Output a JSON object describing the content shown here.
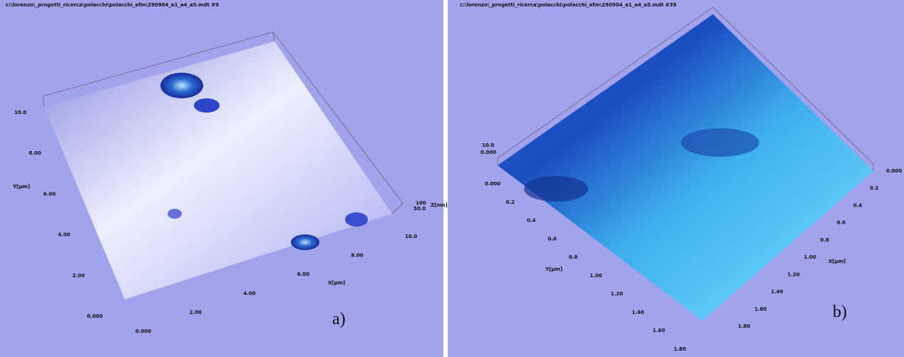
{
  "panels": [
    {
      "title": "c:\\lorenzo\\_progetti_ricerca\\polacchi\\polacchi_afm\\290904_a1_a4_a5.mdt #9",
      "y_axis": {
        "label": "Y[µm]",
        "ticks": [
          "10.0",
          "8.00",
          "6.00",
          "4.00",
          "2.00",
          "0.000"
        ]
      },
      "x_axis": {
        "label": "X[µm]",
        "ticks": [
          "0.000",
          "2.00",
          "4.00",
          "6.00",
          "8.00",
          "10.0"
        ]
      },
      "z_axis": {
        "label": "Z[nm]",
        "ticks": [
          "100",
          "50.0"
        ]
      },
      "panel_label": "a)"
    },
    {
      "title": "c:\\lorenzo\\_progetti_ricerca\\polacchi\\polacchi_afm\\290904_a1_a4_a5.mdt #39",
      "z_axis": {
        "ticks": [
          "10.0",
          "0.000"
        ]
      },
      "y_axis": {
        "label": "Y[µm]",
        "ticks": [
          "0.000",
          "0.2",
          "0.4",
          "0.6",
          "0.8",
          "1.00",
          "1.20",
          "1.40",
          "1.60",
          "1.80"
        ]
      },
      "x_axis": {
        "label": "X[µm]",
        "ticks": [
          "0.000",
          "0.2",
          "0.4",
          "0.6",
          "0.8",
          "1.00",
          "1.20",
          "1.40",
          "1.60",
          "1.80"
        ]
      },
      "panel_label": "b)"
    }
  ]
}
